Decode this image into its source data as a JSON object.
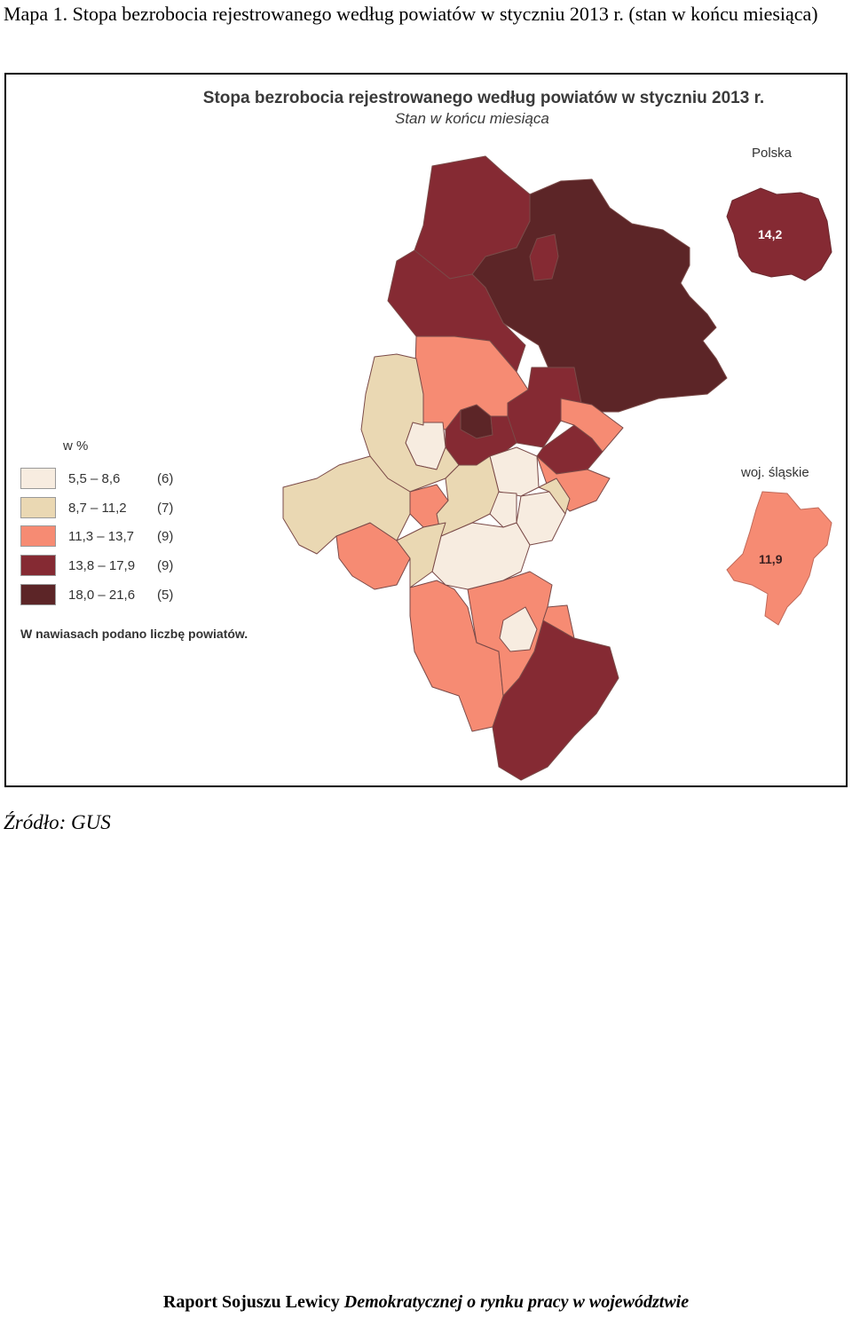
{
  "heading": "Mapa 1. Stopa bezrobocia rejestrowanego według powiatów w styczniu 2013 r. (stan w końcu miesiąca)",
  "map": {
    "title": "Stopa bezrobocia rejestrowanego według powiatów w styczniu 2013 r.",
    "subtitle": "Stan w końcu miesiąca",
    "inset_poland": {
      "label": "Polska",
      "value": "14,2",
      "color": "#852a33"
    },
    "inset_silesia": {
      "label": "woj. śląskie",
      "value": "11,9",
      "color": "#f68b73"
    },
    "legend": {
      "title": "w %",
      "items": [
        {
          "range": "5,5 –  8,6",
          "count": "(6)",
          "color": "#f7ece0"
        },
        {
          "range": "8,7 – 11,2",
          "count": "(7)",
          "color": "#ead8b3"
        },
        {
          "range": "11,3 – 13,7",
          "count": "(9)",
          "color": "#f68b73"
        },
        {
          "range": "13,8 – 17,9",
          "count": "(9)",
          "color": "#852a33"
        },
        {
          "range": "18,0 – 21,6",
          "count": "(5)",
          "color": "#5c2527"
        }
      ],
      "note": "W nawiasach podano liczbę powiatów."
    }
  },
  "source": "Źródło: GUS",
  "footer": {
    "bold": "Raport Sojuszu Lewicy ",
    "italic": "Demokratycznej o rynku pracy w województwie"
  }
}
